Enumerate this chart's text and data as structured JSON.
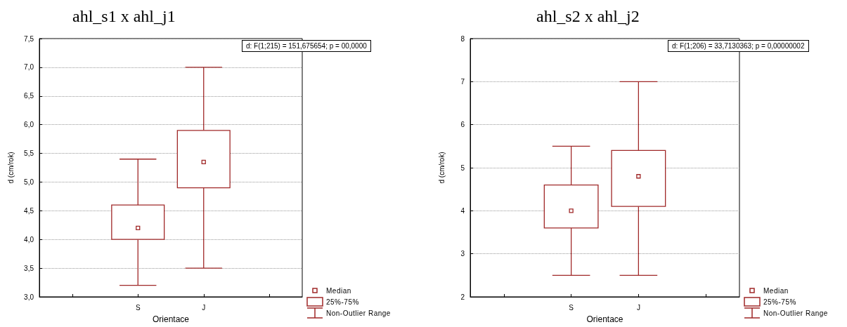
{
  "chart_data": [
    {
      "type": "box",
      "title": "ahl_s1 x ahl_j1",
      "xlabel": "Orientace",
      "ylabel": "d (cm/rok)",
      "color": "#a02828",
      "categories": [
        null,
        "S",
        "J",
        null
      ],
      "boxes": [
        null,
        {
          "low": 3.2,
          "q1": 4.0,
          "median": 4.2,
          "q3": 4.6,
          "high": 5.4
        },
        {
          "low": 3.5,
          "q1": 4.9,
          "median": 5.35,
          "q3": 5.9,
          "high": 7.0
        },
        null
      ],
      "ylim": [
        3,
        7.5
      ],
      "yticks": [
        {
          "value": 3,
          "label": "3,0"
        },
        {
          "value": 3.5,
          "label": "3,5"
        },
        {
          "value": 4,
          "label": "4,0"
        },
        {
          "value": 4.5,
          "label": "4,5"
        },
        {
          "value": 5,
          "label": "5,0"
        },
        {
          "value": 5.5,
          "label": "5,5"
        },
        {
          "value": 6,
          "label": "6,0"
        },
        {
          "value": 6.5,
          "label": "6,5"
        },
        {
          "value": 7,
          "label": "7,0"
        },
        {
          "value": 7.5,
          "label": "7,5"
        }
      ],
      "grid": "y",
      "annotations": [
        "d:   F(1;215) = 151,675654; p = 00,0000",
        "Median",
        "25%-75%",
        "Non-Outlier Range"
      ]
    },
    {
      "type": "box",
      "title": "ahl_s2 x ahl_j2",
      "xlabel": "Orientace",
      "ylabel": "d (cm/rok)",
      "color": "#a02828",
      "categories": [
        null,
        "S",
        "J",
        null
      ],
      "boxes": [
        null,
        {
          "low": 2.5,
          "q1": 3.6,
          "median": 4.0,
          "q3": 4.6,
          "high": 5.5
        },
        {
          "low": 2.5,
          "q1": 4.1,
          "median": 4.8,
          "q3": 5.4,
          "high": 7.0
        },
        null
      ],
      "ylim": [
        2,
        8
      ],
      "yticks": [
        2,
        3,
        4,
        5,
        6,
        7,
        8
      ],
      "grid": "y",
      "annotations": [
        "d:   F(1;206) = 33,7130363; p = 0,00000002",
        "Median",
        "25%-75%",
        "Non-Outlier Range"
      ]
    }
  ]
}
